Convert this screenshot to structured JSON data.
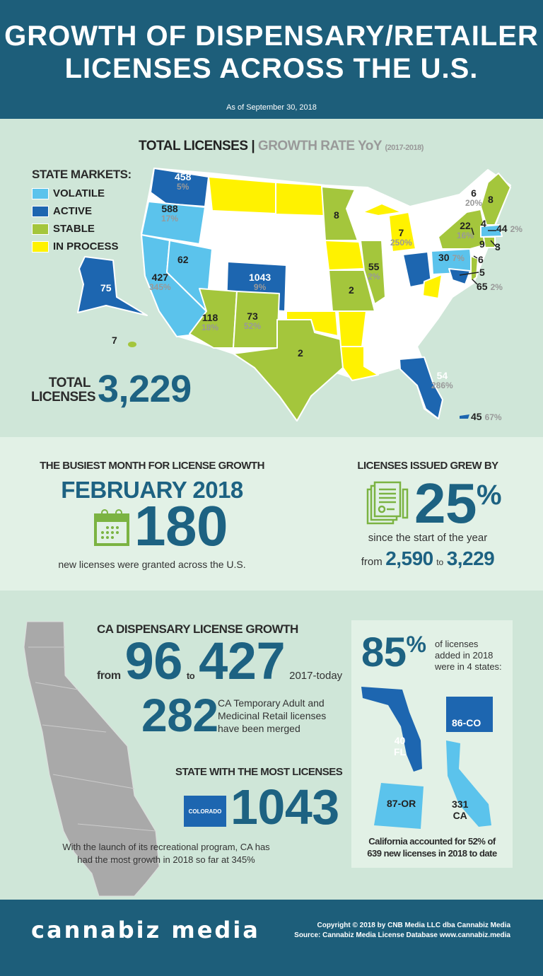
{
  "header": {
    "title_line1": "GROWTH OF DISPENSARY/RETAILER",
    "title_line2": "LICENSES ACROSS THE U.S.",
    "as_of": "As of September 30, 2018"
  },
  "map": {
    "heading_total": "TOTAL LICENSES",
    "heading_sep": "|",
    "heading_growth": "GROWTH RATE YoY",
    "heading_years": "(2017-2018)",
    "legend_title": "STATE MARKETS:",
    "legend": [
      {
        "label": "VOLATILE",
        "color": "#5bc3ec"
      },
      {
        "label": "ACTIVE",
        "color": "#1d66b0"
      },
      {
        "label": "STABLE",
        "color": "#a4c63c"
      },
      {
        "label": "IN PROCESS",
        "color": "#fff200"
      }
    ],
    "states": {
      "WA": {
        "value": "458",
        "growth": "5%"
      },
      "OR": {
        "value": "588",
        "growth": "17%"
      },
      "CA": {
        "value": "427",
        "growth": "345%"
      },
      "NV": {
        "value": "62"
      },
      "AK": {
        "value": "75"
      },
      "HI": {
        "value": "7"
      },
      "CO": {
        "value": "1043",
        "growth": "9%"
      },
      "AZ": {
        "value": "118",
        "growth": "18%"
      },
      "NM": {
        "value": "73",
        "growth": "52%"
      },
      "TX": {
        "value": "2"
      },
      "MN": {
        "value": "8"
      },
      "MO": {
        "value": "2"
      },
      "IL": {
        "value": "55",
        "growth": "2%"
      },
      "MI": {
        "value": "7",
        "growth": "250%"
      },
      "PA": {
        "value": "30",
        "growth": "7%"
      },
      "NY": {
        "value": "22",
        "growth": "16%"
      },
      "VT": {
        "value": "6",
        "growth": "20%"
      },
      "ME": {
        "value": "8"
      },
      "NH": {
        "value": "4"
      },
      "MA": {
        "value": "44",
        "growth": "2%"
      },
      "RI": {
        "value": "3"
      },
      "CT": {
        "value": "9"
      },
      "NJ": {
        "value": "6"
      },
      "DE": {
        "value": "5"
      },
      "MD": {
        "value": "65",
        "growth": "2%"
      },
      "FL": {
        "value": "54",
        "growth": "286%"
      },
      "PR": {
        "value": "45",
        "growth": "67%"
      }
    },
    "total_label_1": "TOTAL",
    "total_label_2": "LICENSES",
    "total_value": "3,229"
  },
  "busiest": {
    "heading": "THE BUSIEST MONTH FOR LICENSE GROWTH",
    "month": "FEBRUARY 2018",
    "count": "180",
    "caption": "new licenses were granted across the U.S."
  },
  "growth": {
    "heading": "LICENSES ISSUED GREW BY",
    "percent": "25",
    "percent_sign": "%",
    "caption": "since the start of the year",
    "from_word": "from",
    "from_value": "2,590",
    "to_word": "to",
    "to_value": "3,229"
  },
  "ca": {
    "heading": "CA DISPENSARY LICENSE GROWTH",
    "from_word": "from",
    "from_value": "96",
    "to_word": "to",
    "to_value": "427",
    "period": "2017-today",
    "merged_value": "282",
    "merged_text_1": "CA Temporary Adult and",
    "merged_text_2": "Medicinal Retail licenses",
    "merged_text_3": "have been merged",
    "most_heading": "STATE WITH THE MOST LICENSES",
    "most_state": "COLORADO",
    "most_value": "1043",
    "note_1": "With the launch of its recreational program, CA has",
    "note_2": "had the most growth in 2018 so far at 345%"
  },
  "top4": {
    "percent": "85",
    "percent_sign": "%",
    "text_1": "of licenses",
    "text_2": "added in 2018",
    "text_3": "were in 4 states:",
    "fl_value": "40",
    "fl_label": "FL",
    "co_label": "86-CO",
    "or_label": "87-OR",
    "ca_value": "331",
    "ca_label": "CA",
    "caption_1": "California accounted for 52% of",
    "caption_2": "639 new licenses in 2018 to date"
  },
  "footer": {
    "brand": "cannabiz media",
    "copyright": "Copyright © 2018 by CNB Media LLC dba Cannabiz Media",
    "source": "Source: Cannabiz Media License Database   www.cannabiz.media"
  }
}
